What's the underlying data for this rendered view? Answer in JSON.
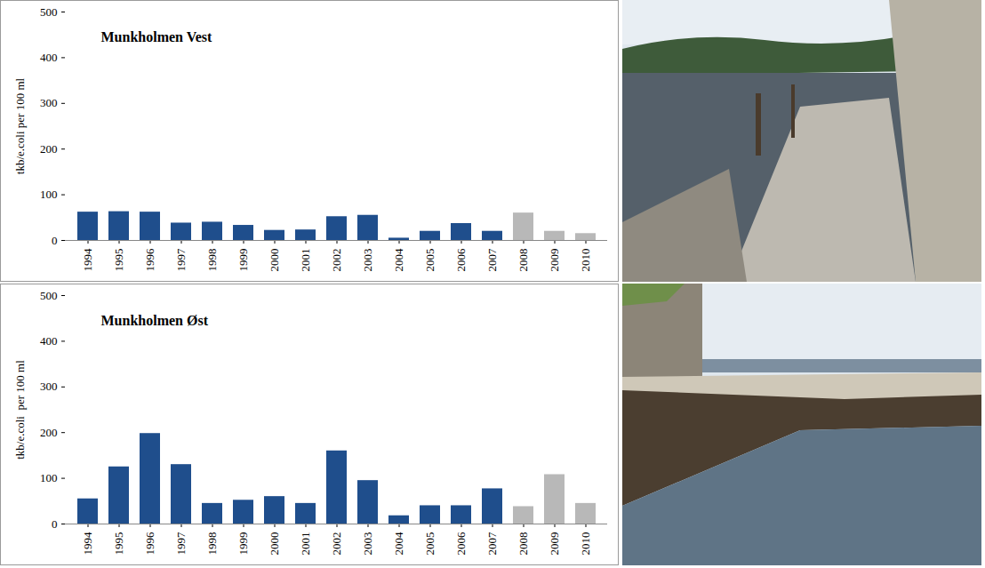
{
  "chart_data": [
    {
      "type": "bar",
      "title": "Munkholmen Vest",
      "y_label": "tkb/e.coli per 100 ml",
      "categories": [
        "1994",
        "1995",
        "1996",
        "1997",
        "1998",
        "1999",
        "2000",
        "2001",
        "2002",
        "2003",
        "2004",
        "2005",
        "2006",
        "2007",
        "2008",
        "2009",
        "2010"
      ],
      "values": [
        62,
        63,
        62,
        38,
        40,
        33,
        22,
        23,
        52,
        55,
        5,
        20,
        37,
        20,
        60,
        20,
        15
      ],
      "colors": [
        "#1f4e8c",
        "#1f4e8c",
        "#1f4e8c",
        "#1f4e8c",
        "#1f4e8c",
        "#1f4e8c",
        "#1f4e8c",
        "#1f4e8c",
        "#1f4e8c",
        "#1f4e8c",
        "#1f4e8c",
        "#1f4e8c",
        "#1f4e8c",
        "#1f4e8c",
        "#b8b8b8",
        "#b8b8b8",
        "#b8b8b8"
      ],
      "ylim": [
        0,
        500
      ],
      "yticks": [
        0,
        100,
        200,
        300,
        400,
        500
      ],
      "grid": false
    },
    {
      "type": "bar",
      "title": "Munkholmen Øst",
      "y_label": "tkb/e.coli  per 100 ml",
      "categories": [
        "1994",
        "1995",
        "1996",
        "1997",
        "1998",
        "1999",
        "2000",
        "2001",
        "2002",
        "2003",
        "2004",
        "2005",
        "2006",
        "2007",
        "2008",
        "2009",
        "2010"
      ],
      "values": [
        55,
        125,
        198,
        130,
        45,
        52,
        60,
        45,
        160,
        95,
        18,
        40,
        40,
        77,
        38,
        108,
        45
      ],
      "colors": [
        "#1f4e8c",
        "#1f4e8c",
        "#1f4e8c",
        "#1f4e8c",
        "#1f4e8c",
        "#1f4e8c",
        "#1f4e8c",
        "#1f4e8c",
        "#1f4e8c",
        "#1f4e8c",
        "#1f4e8c",
        "#1f4e8c",
        "#1f4e8c",
        "#1f4e8c",
        "#b8b8b8",
        "#b8b8b8",
        "#b8b8b8"
      ],
      "ylim": [
        0,
        500
      ],
      "yticks": [
        0,
        100,
        200,
        300,
        400,
        500
      ],
      "grid": false
    }
  ]
}
